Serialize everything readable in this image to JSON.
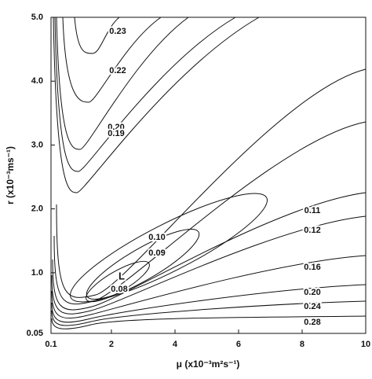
{
  "chart_data": {
    "type": "contour",
    "xlabel": "μ (x10⁻³m²s⁻¹)",
    "ylabel": "r (x10⁻³ms⁻¹)",
    "xlim": [
      0.1,
      10
    ],
    "xticks": [
      0.1,
      2,
      4,
      6,
      8,
      10
    ],
    "ylim": [
      0.05,
      5
    ],
    "yticks": [
      0.05,
      {
        "value": 1,
        "label": "1.0"
      },
      {
        "value": 2,
        "label": "2.0"
      },
      {
        "value": 3,
        "label": "3.0"
      },
      {
        "value": 4,
        "label": "4.0"
      },
      {
        "value": 5,
        "label": "5.0"
      }
    ],
    "contours": [
      0.23,
      0.22,
      {
        "value": 0.2,
        "label": "0.20"
      },
      0.19,
      {
        "value": 0.1,
        "label": "0.10"
      },
      0.09,
      0.08,
      0.11,
      0.12,
      0.16,
      {
        "value": 0.2,
        "label": "0.20"
      },
      0.24,
      0.28
    ],
    "minimum_label": "L",
    "color": "#111111"
  }
}
